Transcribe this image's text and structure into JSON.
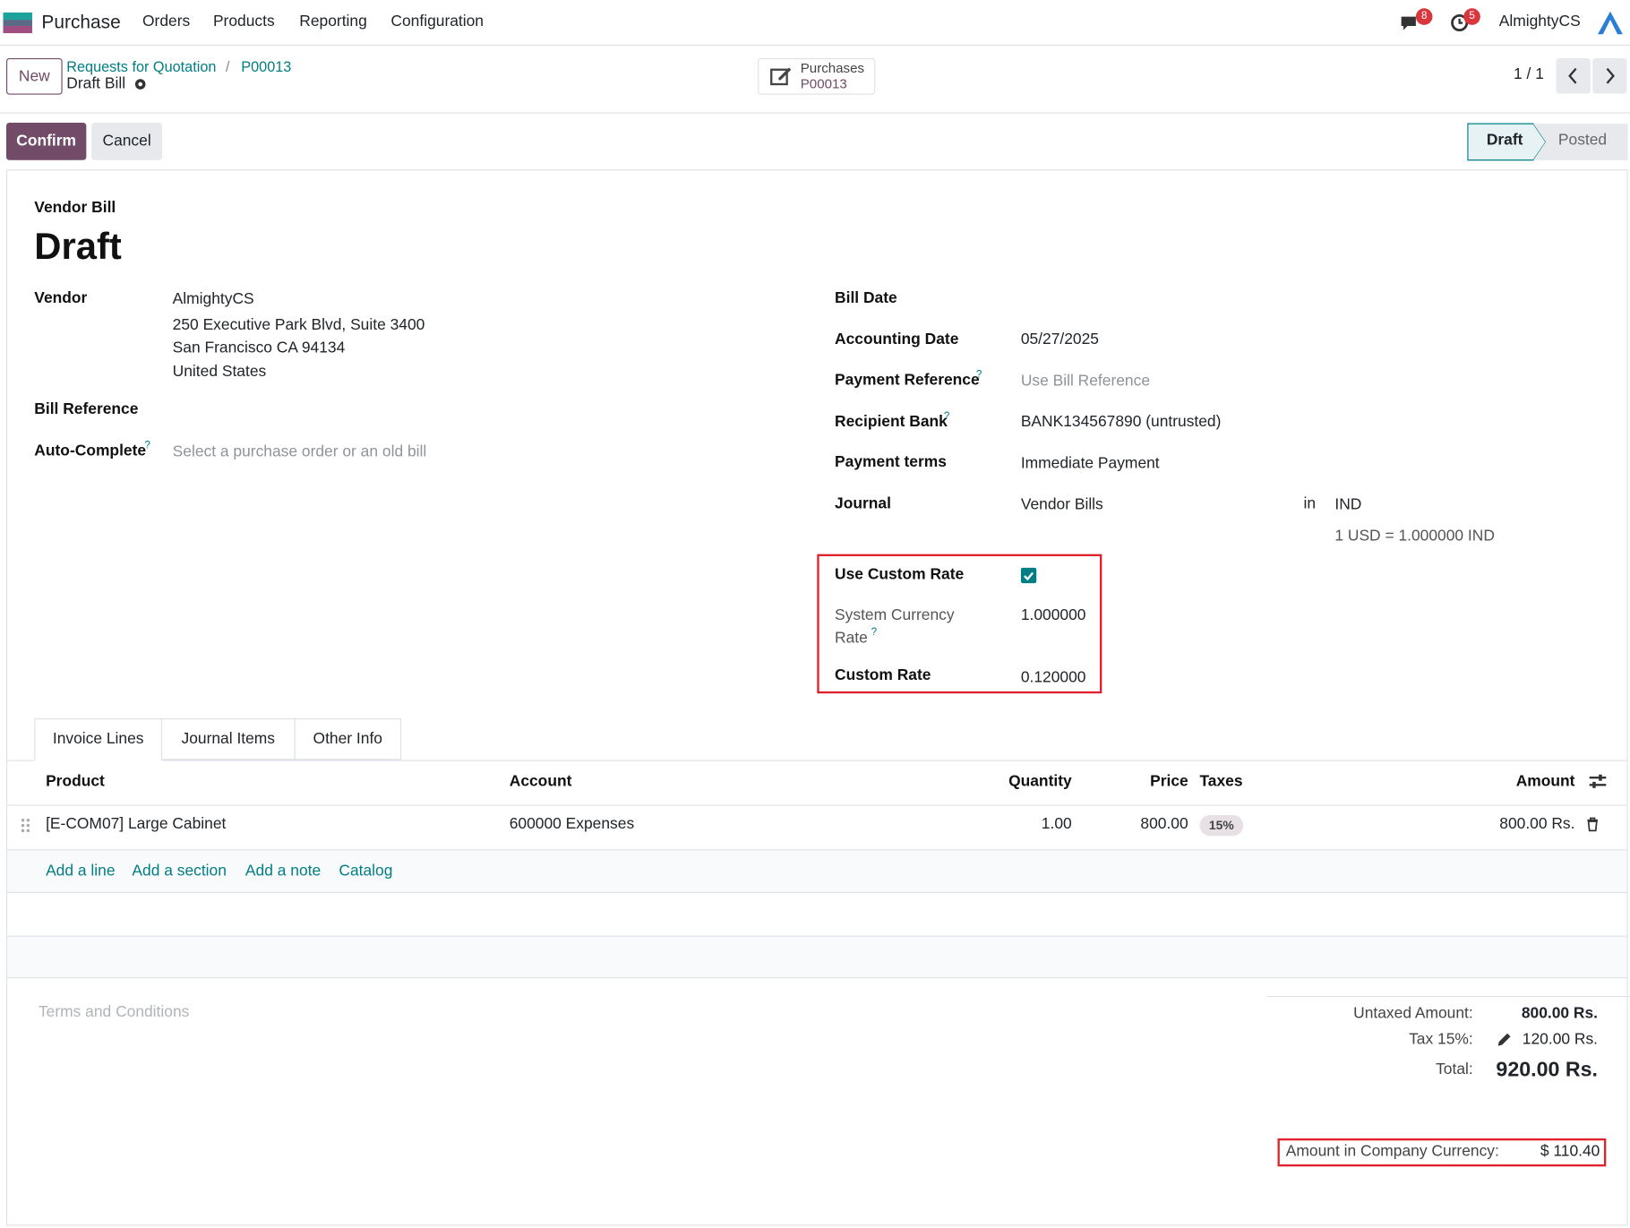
{
  "navbar": {
    "app": "Purchase",
    "menu": [
      "Orders",
      "Products",
      "Reporting",
      "Configuration"
    ],
    "messages_badge": 8,
    "activities_badge": 5,
    "company": "AlmightyCS"
  },
  "control_panel": {
    "new": "New",
    "breadcrumb": [
      "Requests for Quotation",
      "P00013"
    ],
    "separator": "/",
    "current": "Draft Bill",
    "smart_button": {
      "label": "Purchases",
      "value": "P00013"
    },
    "pager": "1 / 1"
  },
  "status_bar": {
    "buttons": [
      "Confirm",
      "Cancel"
    ],
    "stages": [
      "Draft",
      "Posted"
    ]
  },
  "form": {
    "subtitle": "Vendor Bill",
    "title": "Draft",
    "help_mark": "?",
    "vendor": {
      "label": "Vendor",
      "lines": [
        "AlmightyCS",
        "250 Executive Park Blvd, Suite 3400",
        "San Francisco CA 94134",
        "United States"
      ]
    },
    "bill_reference": {
      "label": "Bill Reference"
    },
    "auto_complete": {
      "label": "Auto-Complete",
      "placeholder": "Select a purchase order or an old bill"
    },
    "bill_date": {
      "label": "Bill Date"
    },
    "accounting_date": {
      "label": "Accounting Date",
      "value": "05/27/2025"
    },
    "payment_reference": {
      "label": "Payment Reference",
      "placeholder": "Use Bill Reference"
    },
    "recipient_bank": {
      "label": "Recipient Bank",
      "value": "BANK134567890 (untrusted)"
    },
    "payment_terms": {
      "label": "Payment terms",
      "value": "Immediate Payment"
    },
    "journal": {
      "label": "Journal",
      "value": "Vendor Bills",
      "in": "in",
      "currency": "IND",
      "rate_note": "1 USD = 1.000000 IND"
    },
    "use_custom_rate": {
      "label": "Use Custom Rate",
      "checked": true
    },
    "system_currency_rate": {
      "label_lines": [
        "System Currency",
        "Rate"
      ],
      "value": "1.000000"
    },
    "custom_rate": {
      "label": "Custom Rate",
      "value": "0.120000"
    }
  },
  "tabs": [
    "Invoice Lines",
    "Journal Items",
    "Other Info"
  ],
  "table": {
    "headers": [
      "Product",
      "Account",
      "Quantity",
      "Price",
      "Taxes",
      "Amount"
    ],
    "rows": [
      [
        "[E-COM07] Large Cabinet",
        "600000 Expenses",
        "1.00",
        "800.00",
        "15%",
        "800.00 Rs."
      ]
    ],
    "add_links": [
      "Add a line",
      "Add a section",
      "Add a note",
      "Catalog"
    ]
  },
  "terms_placeholder": "Terms and Conditions",
  "totals": {
    "untaxed": {
      "label": "Untaxed Amount:",
      "value": "800.00 Rs."
    },
    "tax": {
      "label": "Tax 15%:",
      "value": "120.00 Rs."
    },
    "total": {
      "label": "Total:",
      "value": "920.00 Rs."
    },
    "company_currency": {
      "label": "Amount in Company Currency:",
      "value": "$ 110.40"
    }
  }
}
